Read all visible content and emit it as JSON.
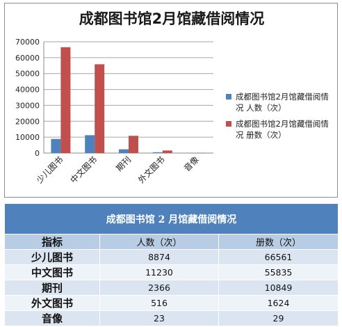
{
  "chart_data": {
    "type": "bar",
    "title": "成都图书馆2月馆藏借阅情况",
    "categories": [
      "少儿图书",
      "中文图书",
      "期刊",
      "外文图书",
      "音像"
    ],
    "series": [
      {
        "name": "成都图书馆2月馆藏借阅情况 人数（次）",
        "color": "#4f81bd",
        "values": [
          8874,
          11230,
          2366,
          516,
          23
        ]
      },
      {
        "name": "成都图书馆2月馆藏借阅情况 册数（次）",
        "color": "#c0504d",
        "values": [
          66561,
          55835,
          10849,
          1624,
          29
        ]
      }
    ],
    "ylim": [
      0,
      70000
    ],
    "yticks": [
      0,
      10000,
      20000,
      30000,
      40000,
      50000,
      60000,
      70000
    ],
    "grid": true,
    "legend_position": "right"
  },
  "table": {
    "title": "成都图书馆 2 月馆藏借阅情况",
    "header": [
      "指标",
      "人数（次）",
      "册数（次）"
    ],
    "rows": [
      [
        "少儿图书",
        "8874",
        "66561"
      ],
      [
        "中文图书",
        "11230",
        "55835"
      ],
      [
        "期刊",
        "2366",
        "10849"
      ],
      [
        "外文图书",
        "516",
        "1624"
      ],
      [
        "音像",
        "23",
        "29"
      ]
    ]
  }
}
